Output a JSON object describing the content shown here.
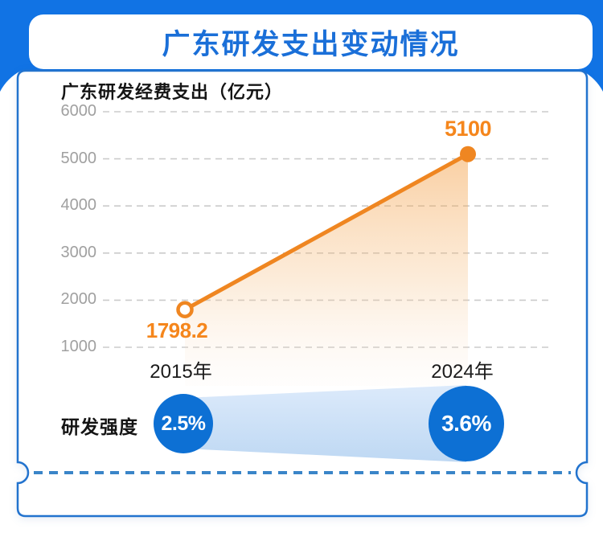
{
  "header": {
    "title": "广东研发支出变动情况"
  },
  "chart_data": {
    "type": "line",
    "title": "广东研发经费支出（亿元）",
    "categories": [
      "2015年",
      "2024年"
    ],
    "series": [
      {
        "name": "研发经费支出",
        "values": [
          1798.2,
          5100
        ]
      }
    ],
    "point_labels": [
      "1798.2",
      "5100"
    ],
    "y_ticks": [
      6000,
      5000,
      4000,
      3000,
      2000,
      1000
    ],
    "ylim": [
      1000,
      6000
    ],
    "grid": "dashed-horizontal",
    "legend": "none",
    "line_color": "#EF8621"
  },
  "intensity": {
    "label": "研发强度",
    "categories": [
      "2015年",
      "2024年"
    ],
    "values": [
      "2.5%",
      "3.6%"
    ]
  },
  "colors": {
    "banner_blue": "#1173E4",
    "title_blue": "#1A6FD8",
    "card_border": "#2273CE",
    "circle_blue": "#0D70D4",
    "line_orange": "#EF8621",
    "label_orange": "#F5861C",
    "separator_blue": "#3A85C8",
    "grid_gray": "#CBCBCB",
    "tick_gray": "#A0A0A0"
  }
}
